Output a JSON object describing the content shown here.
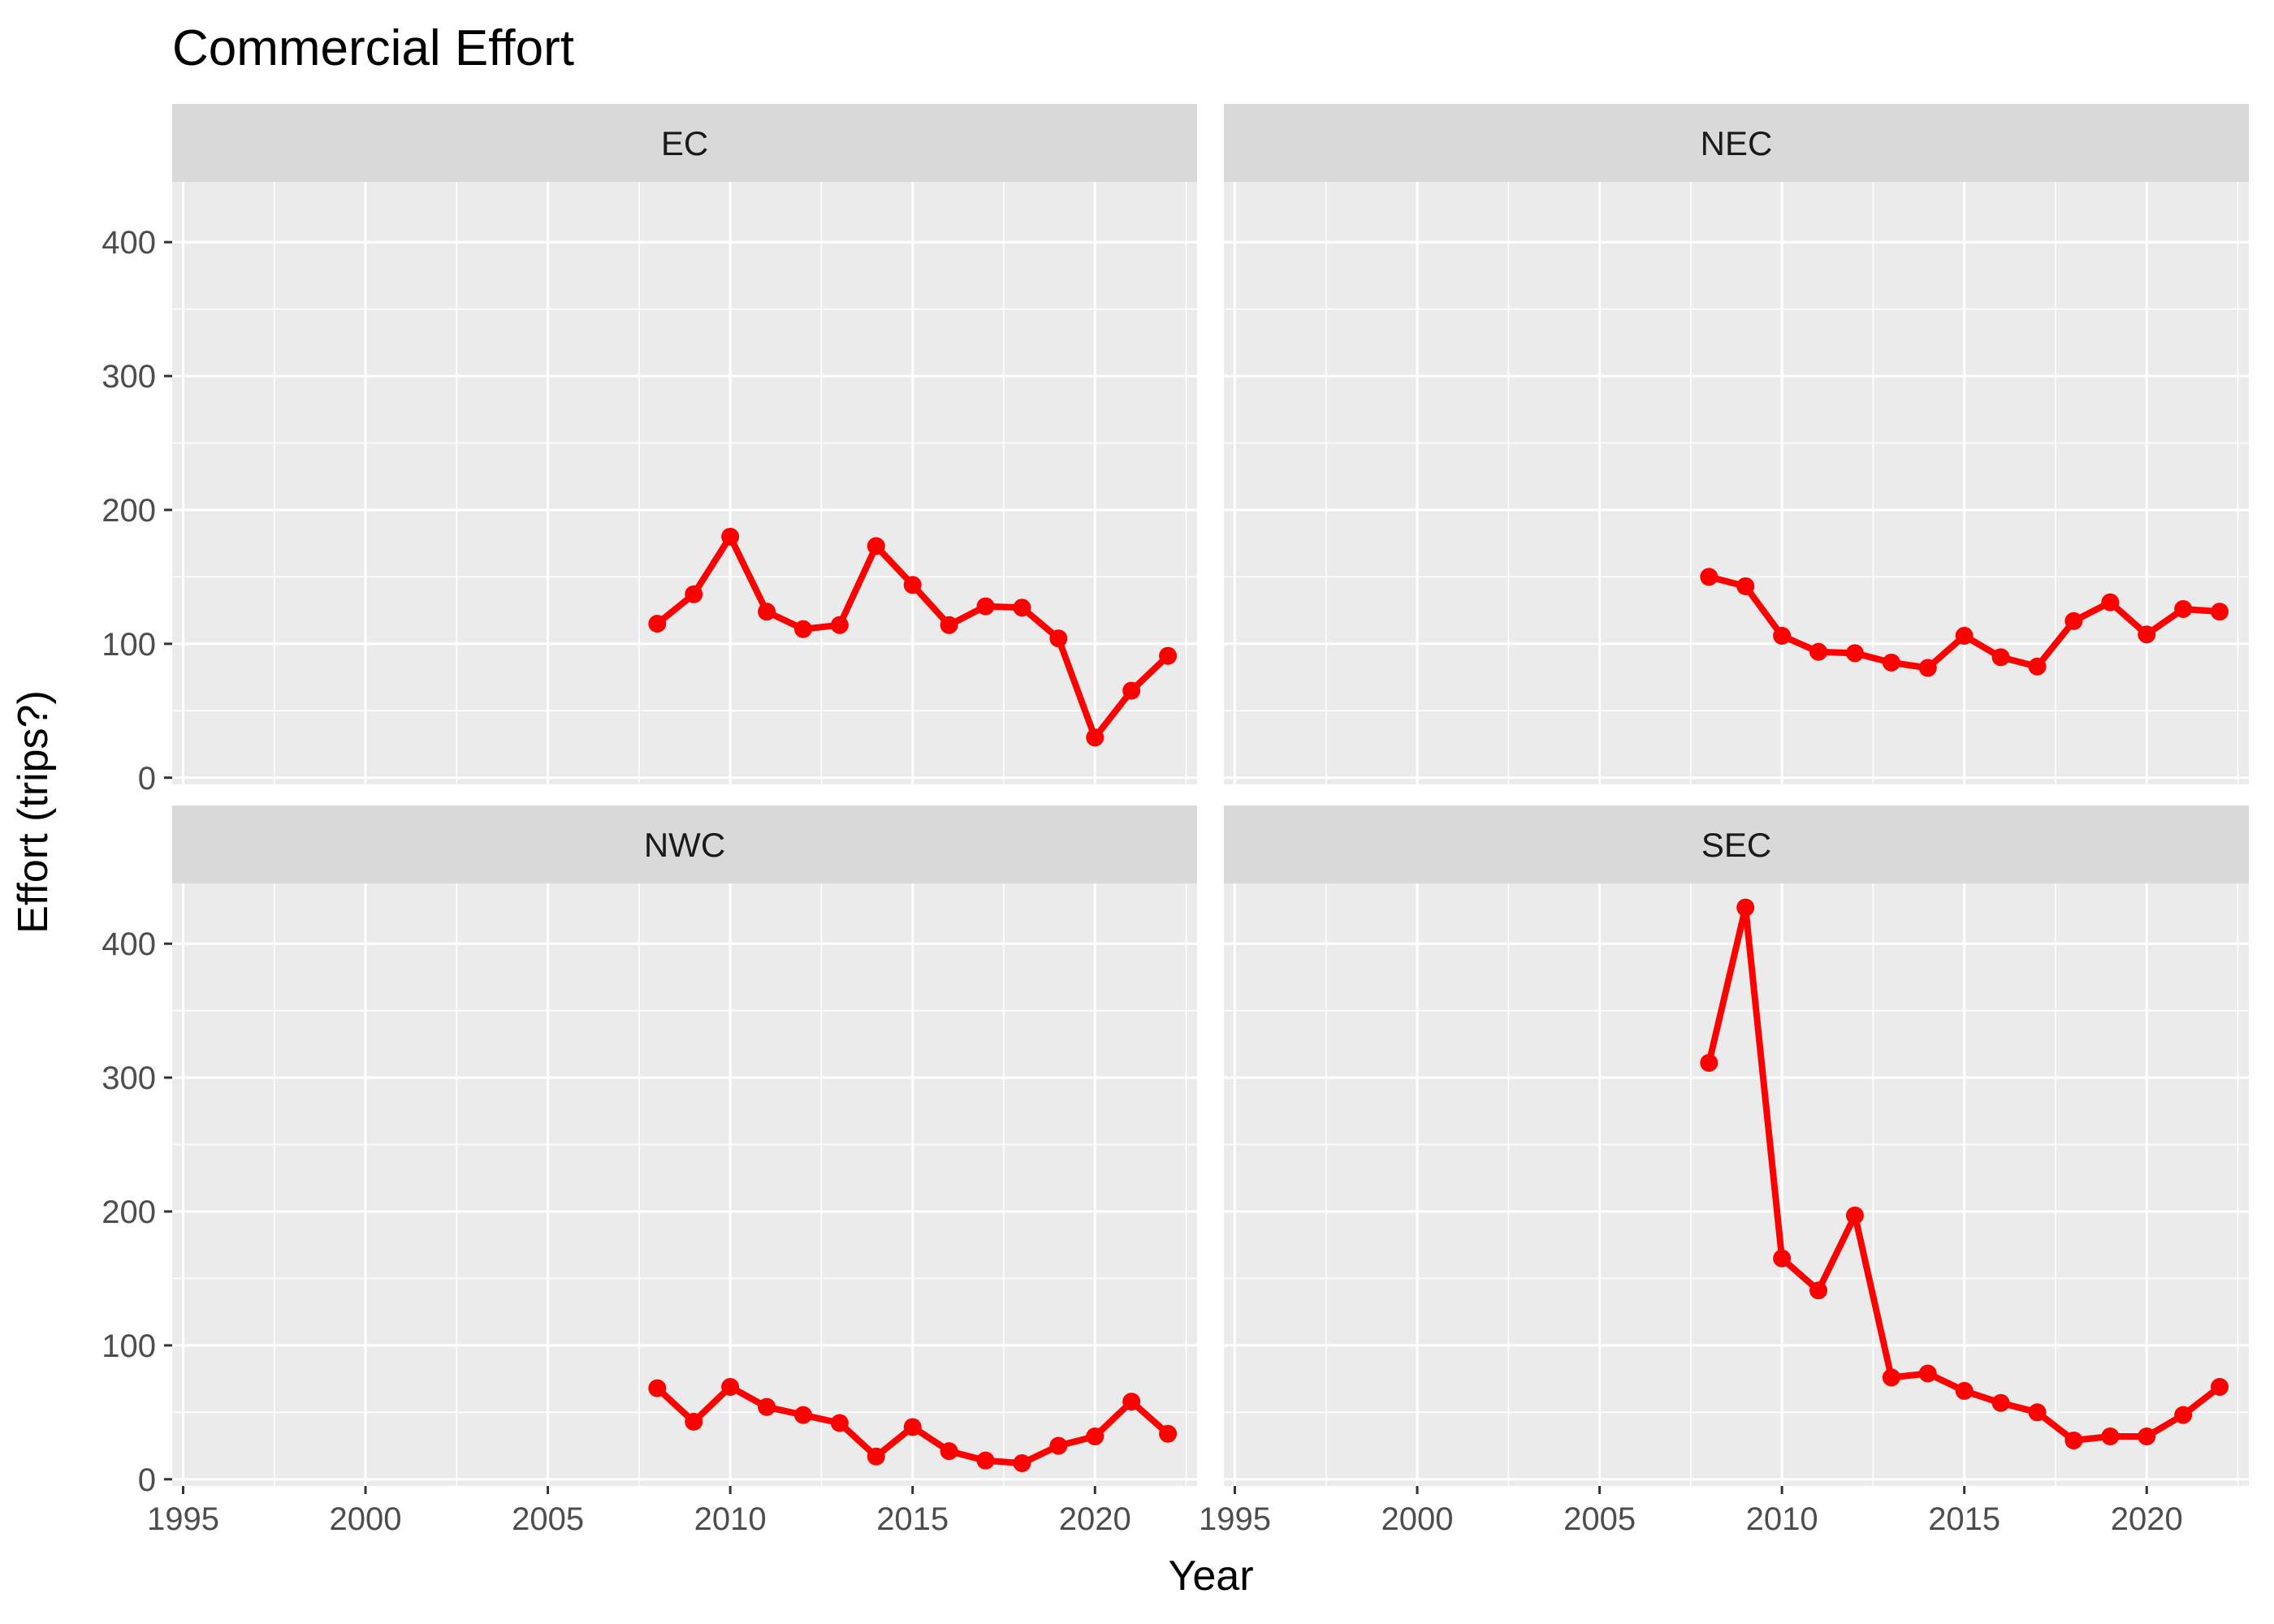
{
  "chart_data": {
    "type": "line",
    "title": "Commercial Effort",
    "xlabel": "Year",
    "ylabel": "Effort (trips?)",
    "xlim": [
      1994.7,
      2022.8
    ],
    "ylim": [
      -5,
      445
    ],
    "x_ticks": [
      1995,
      2000,
      2005,
      2010,
      2015,
      2020
    ],
    "y_ticks": [
      0,
      100,
      200,
      300,
      400
    ],
    "grid": true,
    "line_color": "#ff0000",
    "panels": [
      {
        "name": "EC",
        "x": [
          2008,
          2009,
          2010,
          2011,
          2012,
          2013,
          2014,
          2015,
          2016,
          2017,
          2018,
          2019,
          2020,
          2021,
          2022
        ],
        "values": [
          115,
          137,
          180,
          124,
          111,
          114,
          173,
          144,
          114,
          128,
          127,
          104,
          30,
          65,
          91
        ]
      },
      {
        "name": "NEC",
        "x": [
          2008,
          2009,
          2010,
          2011,
          2012,
          2013,
          2014,
          2015,
          2016,
          2017,
          2018,
          2019,
          2020,
          2021,
          2022
        ],
        "values": [
          150,
          143,
          106,
          94,
          93,
          86,
          82,
          106,
          90,
          83,
          117,
          131,
          107,
          126,
          124
        ]
      },
      {
        "name": "NWC",
        "x": [
          2008,
          2009,
          2010,
          2011,
          2012,
          2013,
          2014,
          2015,
          2016,
          2017,
          2018,
          2019,
          2020,
          2021,
          2022
        ],
        "values": [
          68,
          43,
          69,
          54,
          48,
          42,
          17,
          39,
          21,
          14,
          12,
          25,
          32,
          58,
          34
        ]
      },
      {
        "name": "SEC",
        "x": [
          2008,
          2009,
          2010,
          2011,
          2012,
          2013,
          2014,
          2015,
          2016,
          2017,
          2018,
          2019,
          2020,
          2021,
          2022
        ],
        "values": [
          311,
          427,
          165,
          141,
          197,
          76,
          79,
          66,
          57,
          50,
          29,
          32,
          32,
          48,
          69
        ]
      }
    ]
  }
}
